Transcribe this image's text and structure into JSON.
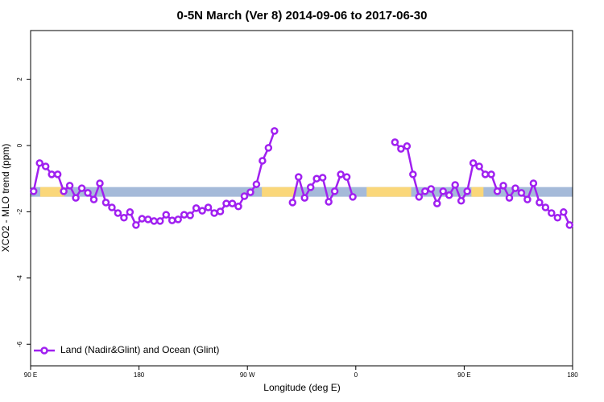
{
  "chart_data": {
    "type": "line",
    "title": "0-5N March (Ver 8)   2014-09-06 to 2017-06-30",
    "x_label": "Longitude (deg E)",
    "y_label": "XCO2 - MLO trend (ppm)",
    "xlim": [
      90,
      540
    ],
    "ylim": [
      -6.65,
      3.47
    ],
    "xticks": [
      {
        "value": 90,
        "label": "90 E"
      },
      180,
      {
        "value": 270,
        "label": "90 W"
      },
      {
        "value": 360,
        "label": "0"
      },
      {
        "value": 450,
        "label": "90 E"
      },
      {
        "value": 540,
        "label": "180"
      }
    ],
    "yticks": [
      -6,
      -4,
      -2,
      0,
      2
    ],
    "legend": "bottom-left",
    "band": {
      "y": -1.4,
      "color": "#a5bad9",
      "highlight_color": "#fad77a",
      "highlight_spans": [
        [
          98,
          118
        ],
        [
          282,
          309
        ],
        [
          369,
          406
        ],
        [
          456,
          466
        ]
      ]
    },
    "x": [
      92.5,
      97.5,
      102.5,
      107.5,
      112.5,
      117.5,
      122.5,
      127.5,
      132.5,
      137.5,
      142.5,
      147.5,
      152.5,
      157.5,
      162.5,
      167.5,
      172.5,
      177.5,
      182.5,
      187.5,
      192.5,
      197.5,
      202.5,
      207.5,
      212.5,
      217.5,
      222.5,
      227.5,
      232.5,
      237.5,
      242.5,
      247.5,
      252.5,
      257.5,
      262.5,
      267.5,
      272.5,
      277.5,
      282.5,
      287.5,
      292.5,
      297.5,
      302.5,
      307.5,
      312.5,
      317.5,
      322.5,
      327.5,
      332.5,
      337.5,
      342.5,
      347.5,
      352.5,
      357.5,
      362.5,
      367.5,
      372.5,
      377.5,
      382.5,
      387.5,
      392.5,
      397.5,
      402.5,
      407.5,
      412.5,
      417.5,
      422.5,
      427.5,
      432.5,
      437.5,
      442.5,
      447.5,
      452.5,
      457.5,
      462.5,
      467.5,
      472.5,
      477.5,
      482.5,
      487.5,
      492.5,
      497.5,
      502.5,
      507.5,
      512.5,
      517.5,
      522.5,
      527.5,
      532.5,
      537.5
    ],
    "series": [
      {
        "name": "Land (Nadir&Glint) and Ocean (Glint)",
        "color": "#a020f0",
        "values": [
          -1.38,
          -0.53,
          -0.63,
          -0.87,
          -0.87,
          -1.38,
          -1.21,
          -1.58,
          -1.29,
          -1.43,
          -1.63,
          -1.14,
          -1.72,
          -1.87,
          -2.04,
          -2.18,
          -2.01,
          -2.4,
          -2.21,
          -2.23,
          -2.28,
          -2.28,
          -2.09,
          -2.26,
          -2.23,
          -2.09,
          -2.11,
          -1.89,
          -1.97,
          -1.87,
          -2.04,
          -1.99,
          -1.75,
          -1.75,
          -1.84,
          -1.53,
          -1.41,
          -1.17,
          -0.46,
          -0.07,
          0.44,
          null,
          null,
          -1.72,
          -0.95,
          -1.58,
          -1.26,
          -1.0,
          -0.97,
          -1.7,
          -1.38,
          -0.87,
          -0.95,
          -1.55,
          null,
          null,
          null,
          null,
          null,
          null,
          0.1,
          -0.1,
          -0.02,
          -0.87,
          -1.55,
          -1.38,
          -1.31,
          -1.75,
          -1.38,
          -1.5,
          -1.19,
          -1.67,
          -1.38,
          -0.53,
          -0.63,
          -0.87,
          -0.87,
          -1.38,
          -1.21,
          -1.58,
          -1.29,
          -1.43,
          -1.63,
          -1.14,
          -1.72,
          -1.87,
          -2.04,
          -2.18,
          -2.01,
          -2.4
        ]
      }
    ]
  }
}
